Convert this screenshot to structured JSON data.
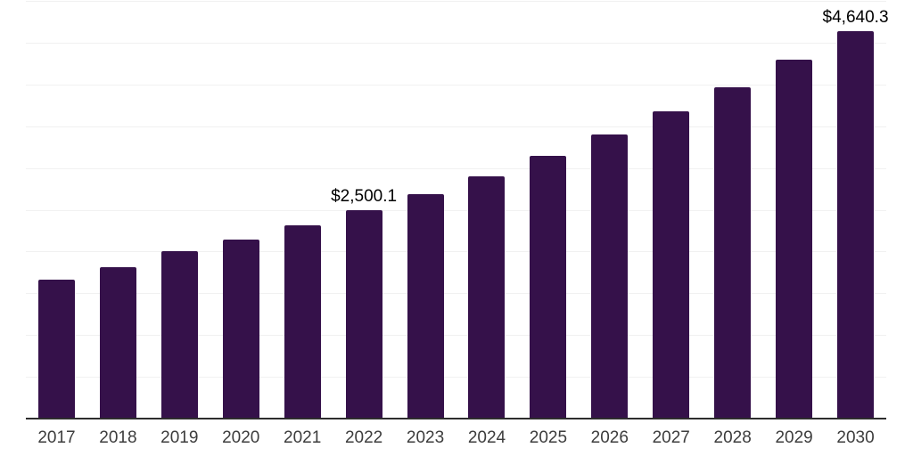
{
  "chart_data": {
    "type": "bar",
    "title": "",
    "xlabel": "",
    "ylabel": "",
    "categories": [
      "2017",
      "2018",
      "2019",
      "2020",
      "2021",
      "2022",
      "2023",
      "2024",
      "2025",
      "2026",
      "2027",
      "2028",
      "2029",
      "2030"
    ],
    "values": [
      1660,
      1810,
      2000,
      2140,
      2310,
      2500.1,
      2685,
      2905,
      3140,
      3400,
      3675,
      3965,
      4295,
      4640.3
    ],
    "point_labels": [
      "",
      "",
      "",
      "",
      "",
      "$2,500.1",
      "",
      "",
      "",
      "",
      "",
      "",
      "",
      "$4,640.3"
    ],
    "ylim": [
      0,
      5000
    ],
    "gridline_interval": 500,
    "grid": "horizontal",
    "legend_position": "none",
    "colors": {
      "bar": "#35114a",
      "axis_line": "#2d2d2d",
      "gridline": "#f1f1f1",
      "tick_label": "#3d3d3d",
      "data_label": "#000000",
      "background": "#ffffff"
    }
  }
}
